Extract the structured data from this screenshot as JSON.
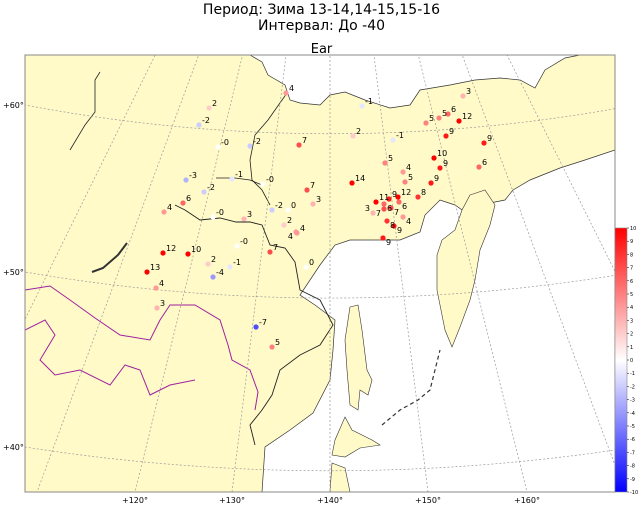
{
  "title_line1": "Период: Зима 13-14,14-15,15-16",
  "title_line2": "Интервал: До -40",
  "subtitle": "Ear",
  "chart_data": {
    "type": "map-scatter",
    "projection": "conic",
    "colormap": "bwr",
    "vmin": -10,
    "vmax": 10,
    "land_color": "#fffac8",
    "sea_color": "#ffffff",
    "border_color": "#a020a0",
    "lat_ticks": [
      "+60°",
      "+50°",
      "+40°"
    ],
    "lon_ticks": [
      "+120°",
      "+130°",
      "+140°",
      "+150°",
      "+160°"
    ],
    "colorbar_ticks": [
      "10",
      "9",
      "8",
      "7",
      "6",
      "5",
      "4",
      "3",
      "2",
      "1",
      "0",
      "-1",
      "-2",
      "-3",
      "-4",
      "-5",
      "-6",
      "-7",
      "-8",
      "-9",
      "-10"
    ],
    "stations": [
      {
        "label": "2",
        "value": 2
      },
      {
        "label": "-2",
        "value": -2
      },
      {
        "label": "-0",
        "value": 0
      },
      {
        "label": "-2",
        "value": -2
      },
      {
        "label": "7",
        "value": 7
      },
      {
        "label": "-3",
        "value": -3
      },
      {
        "label": "-1",
        "value": -1
      },
      {
        "label": "-0",
        "value": 0
      },
      {
        "label": "-2",
        "value": -2
      },
      {
        "label": "7",
        "value": 7
      },
      {
        "label": "3",
        "value": 3
      },
      {
        "label": "6",
        "value": 6
      },
      {
        "label": "4",
        "value": 4
      },
      {
        "label": "-0",
        "value": 0
      },
      {
        "label": "3",
        "value": 3
      },
      {
        "label": "-2",
        "value": -2
      },
      {
        "label": "0",
        "value": 0
      },
      {
        "label": "2",
        "value": 2
      },
      {
        "label": "4",
        "value": 4
      },
      {
        "label": "4",
        "value": 4
      },
      {
        "label": "-1",
        "value": -1
      },
      {
        "label": "3",
        "value": 3
      },
      {
        "label": "5",
        "value": 5
      },
      {
        "label": "5",
        "value": 5
      },
      {
        "label": "6",
        "value": 6
      },
      {
        "label": "12",
        "value": 12
      },
      {
        "label": "2",
        "value": 2
      },
      {
        "label": "-1",
        "value": -1
      },
      {
        "label": "9",
        "value": 9
      },
      {
        "label": "9",
        "value": 9
      },
      {
        "label": "10",
        "value": 10
      },
      {
        "label": "9",
        "value": 9
      },
      {
        "label": "6",
        "value": 6
      },
      {
        "label": "5",
        "value": 5
      },
      {
        "label": "4",
        "value": 4
      },
      {
        "label": "5",
        "value": 5
      },
      {
        "label": "9",
        "value": 9
      },
      {
        "label": "14",
        "value": 14
      },
      {
        "label": "11",
        "value": 11
      },
      {
        "label": "9",
        "value": 9
      },
      {
        "label": "12",
        "value": 12
      },
      {
        "label": "8",
        "value": 8
      },
      {
        "label": "6",
        "value": 6
      },
      {
        "label": "6",
        "value": 6
      },
      {
        "label": "7",
        "value": 7
      },
      {
        "label": "7",
        "value": 7
      },
      {
        "label": "3",
        "value": 3
      },
      {
        "label": "8",
        "value": 8
      },
      {
        "label": "4",
        "value": 4
      },
      {
        "label": "9",
        "value": 9
      },
      {
        "label": "9",
        "value": 9
      },
      {
        "label": "12",
        "value": 12
      },
      {
        "label": "10",
        "value": 10
      },
      {
        "label": "-0",
        "value": 0
      },
      {
        "label": "7",
        "value": 7
      },
      {
        "label": "2",
        "value": 2
      },
      {
        "label": "-1",
        "value": -1
      },
      {
        "label": "-4",
        "value": -4
      },
      {
        "label": "13",
        "value": 13
      },
      {
        "label": "4",
        "value": 4
      },
      {
        "label": "3",
        "value": 3
      },
      {
        "label": "-7",
        "value": -7
      },
      {
        "label": "5",
        "value": 5
      },
      {
        "label": "0",
        "value": 0
      },
      {
        "label": "4",
        "value": 4
      }
    ]
  }
}
